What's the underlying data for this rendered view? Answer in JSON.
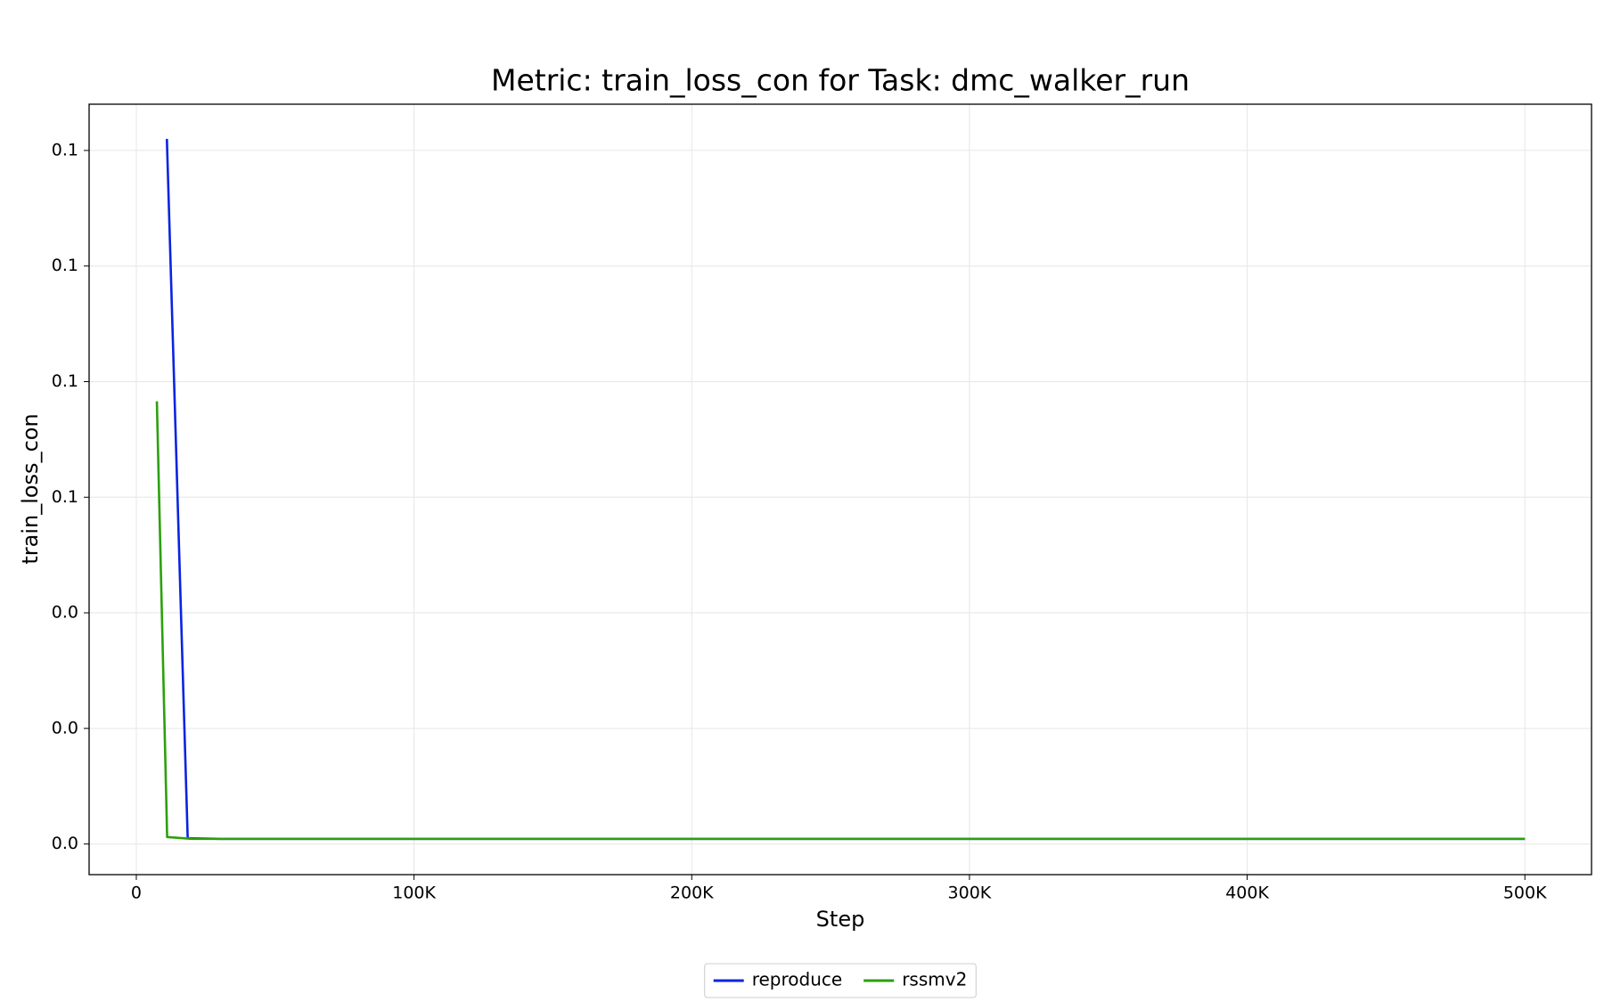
{
  "chart_data": {
    "type": "line",
    "title": "Metric: train_loss_con for Task: dmc_walker_run",
    "x_label": "Step",
    "y_label": "train_loss_con",
    "series": [
      {
        "name": "reproduce",
        "color": "#0a24e0",
        "x": [
          11000,
          18500,
          30000,
          50000,
          100000,
          200000,
          300000,
          400000,
          500000
        ],
        "values": [
          0.122,
          0.001,
          0.0009,
          0.0009,
          0.0009,
          0.0009,
          0.0009,
          0.0009,
          0.0009
        ]
      },
      {
        "name": "rssmv2",
        "color": "#2ca00c",
        "x": [
          7400,
          11100,
          20000,
          40000,
          100000,
          200000,
          300000,
          400000,
          500000
        ],
        "values": [
          0.0766,
          0.0012,
          0.0009,
          0.0009,
          0.0009,
          0.0009,
          0.0009,
          0.0009,
          0.0009
        ]
      }
    ],
    "xlim": [
      -17000,
      524000
    ],
    "ylim": [
      -0.0053,
      0.128
    ],
    "xticks": [
      0,
      {
        "value": 100000,
        "label": "100K"
      },
      {
        "value": 200000,
        "label": "200K"
      },
      {
        "value": 300000,
        "label": "300K"
      },
      {
        "value": 400000,
        "label": "400K"
      },
      {
        "value": 500000,
        "label": "500K"
      }
    ],
    "yticks": [
      {
        "value": 0,
        "label": "0.0"
      },
      {
        "value": 0.02,
        "label": "0.0"
      },
      {
        "value": 0.04,
        "label": "0.0"
      },
      {
        "value": 0.06,
        "label": "0.1"
      },
      {
        "value": 0.08,
        "label": "0.1"
      },
      {
        "value": 0.1,
        "label": "0.1"
      },
      {
        "value": 0.12,
        "label": "0.1"
      }
    ],
    "grid": true,
    "legend": "bottom"
  }
}
